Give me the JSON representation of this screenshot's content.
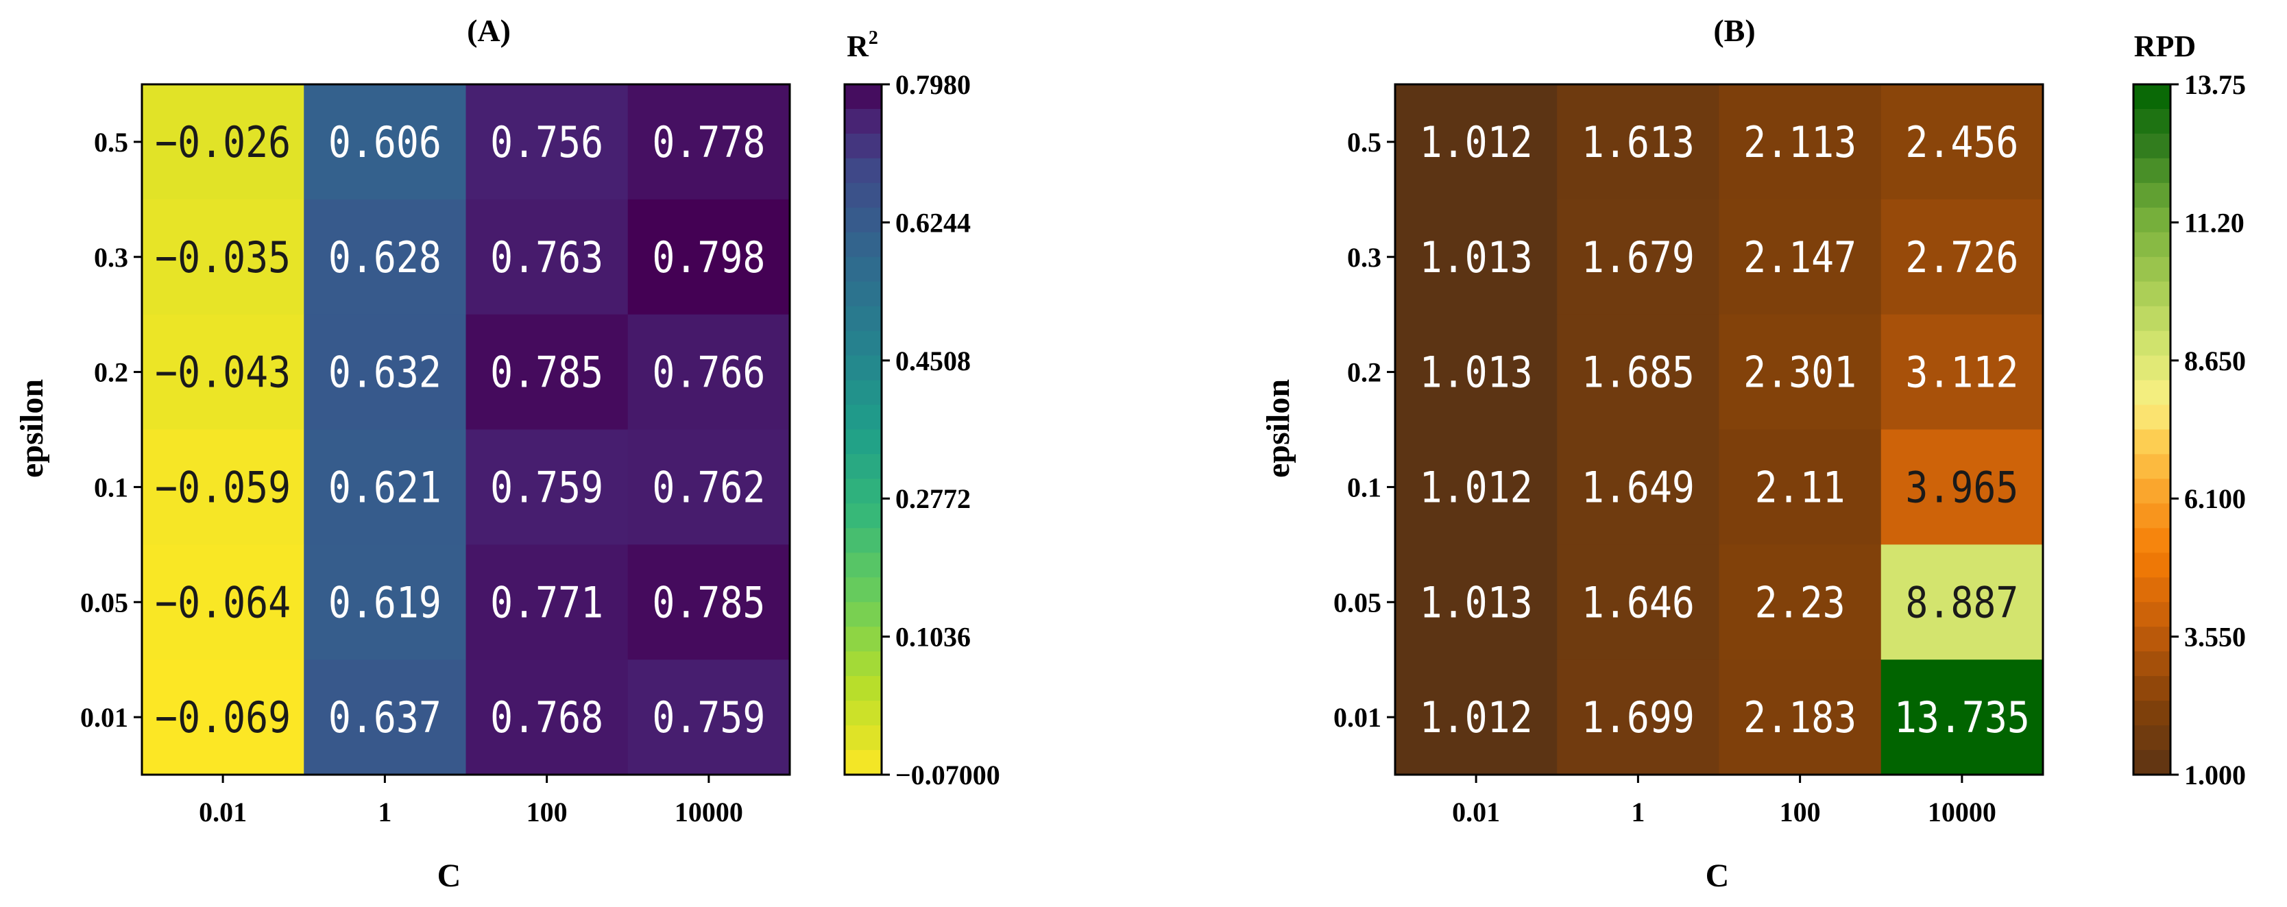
{
  "chart_data": [
    {
      "type": "heatmap",
      "title": "(A)",
      "xlabel": "C",
      "ylabel": "epsilon",
      "x_categories": [
        "0.01",
        "1",
        "100",
        "10000"
      ],
      "y_categories": [
        "0.5",
        "0.3",
        "0.2",
        "0.1",
        "0.05",
        "0.01"
      ],
      "cell_labels": [
        [
          "−0.026",
          "0.606",
          "0.756",
          "0.778"
        ],
        [
          "−0.035",
          "0.628",
          "0.763",
          "0.798"
        ],
        [
          "−0.043",
          "0.632",
          "0.785",
          "0.766"
        ],
        [
          "−0.059",
          "0.621",
          "0.759",
          "0.762"
        ],
        [
          "−0.064",
          "0.619",
          "0.771",
          "0.785"
        ],
        [
          "−0.069",
          "0.637",
          "0.768",
          "0.759"
        ]
      ],
      "values": [
        [
          -0.026,
          0.606,
          0.756,
          0.778
        ],
        [
          -0.035,
          0.628,
          0.763,
          0.798
        ],
        [
          -0.043,
          0.632,
          0.785,
          0.766
        ],
        [
          -0.059,
          0.621,
          0.759,
          0.762
        ],
        [
          -0.064,
          0.619,
          0.771,
          0.785
        ],
        [
          -0.069,
          0.637,
          0.768,
          0.759
        ]
      ],
      "colormap": "viridis_r",
      "vmin": -0.07,
      "vmax": 0.798,
      "colorbar": {
        "label": "R",
        "label_superscript": "2",
        "ticks": [
          0.798,
          0.6244,
          0.4508,
          0.2772,
          0.1036,
          -0.07
        ],
        "tick_labels": [
          "0.7980",
          "0.6244",
          "0.4508",
          "0.2772",
          "0.1036",
          "−0.07000"
        ],
        "levels": 28
      },
      "cell_text_colors": [
        [
          "#1a1a1a",
          "#ffffff",
          "#ffffff",
          "#ffffff"
        ],
        [
          "#1a1a1a",
          "#ffffff",
          "#ffffff",
          "#ffffff"
        ],
        [
          "#1a1a1a",
          "#ffffff",
          "#ffffff",
          "#ffffff"
        ],
        [
          "#1a1a1a",
          "#ffffff",
          "#ffffff",
          "#ffffff"
        ],
        [
          "#1a1a1a",
          "#ffffff",
          "#ffffff",
          "#ffffff"
        ],
        [
          "#1a1a1a",
          "#ffffff",
          "#ffffff",
          "#ffffff"
        ]
      ]
    },
    {
      "type": "heatmap",
      "title": "(B)",
      "xlabel": "C",
      "ylabel": "epsilon",
      "x_categories": [
        "0.01",
        "1",
        "100",
        "10000"
      ],
      "y_categories": [
        "0.5",
        "0.3",
        "0.2",
        "0.1",
        "0.05",
        "0.01"
      ],
      "cell_labels": [
        [
          "1.012",
          "1.613",
          "2.113",
          "2.456"
        ],
        [
          "1.013",
          "1.679",
          "2.147",
          "2.726"
        ],
        [
          "1.013",
          "1.685",
          "2.301",
          "3.112"
        ],
        [
          "1.012",
          "1.649",
          "2.11",
          "3.965"
        ],
        [
          "1.013",
          "1.646",
          "2.23",
          "8.887"
        ],
        [
          "1.012",
          "1.699",
          "2.183",
          "13.735"
        ]
      ],
      "values": [
        [
          1.012,
          1.613,
          2.113,
          2.456
        ],
        [
          1.013,
          1.679,
          2.147,
          2.726
        ],
        [
          1.013,
          1.685,
          2.301,
          3.112
        ],
        [
          1.012,
          1.649,
          2.11,
          3.965
        ],
        [
          1.013,
          1.646,
          2.23,
          8.887
        ],
        [
          1.012,
          1.699,
          2.183,
          13.735
        ]
      ],
      "colormap": "brown-orange-yellow-green",
      "vmin": 1.0,
      "vmax": 13.75,
      "colorbar": {
        "label": "RPD",
        "ticks": [
          13.75,
          11.2,
          8.65,
          6.1,
          3.55,
          1.0
        ],
        "tick_labels": [
          "13.75",
          "11.20",
          "8.650",
          "6.100",
          "3.550",
          "1.000"
        ],
        "levels": 28
      },
      "cell_text_colors": [
        [
          "#ffffff",
          "#ffffff",
          "#ffffff",
          "#ffffff"
        ],
        [
          "#ffffff",
          "#ffffff",
          "#ffffff",
          "#ffffff"
        ],
        [
          "#ffffff",
          "#ffffff",
          "#ffffff",
          "#ffffff"
        ],
        [
          "#ffffff",
          "#ffffff",
          "#ffffff",
          "#1a1a1a"
        ],
        [
          "#ffffff",
          "#ffffff",
          "#ffffff",
          "#1a1a1a"
        ],
        [
          "#ffffff",
          "#ffffff",
          "#ffffff",
          "#ffffff"
        ]
      ]
    }
  ]
}
